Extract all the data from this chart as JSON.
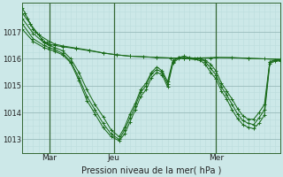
{
  "background_color": "#cce8e8",
  "plot_bg_color": "#cce8e8",
  "grid_color_major": "#99bbbb",
  "grid_color_minor": "#bbdddd",
  "line_color": "#1a6b1a",
  "vline_color": "#336633",
  "xlabel": "Pression niveau de la mer( hPa )",
  "xtick_labels": [
    "Mar",
    "Jeu",
    "Mer"
  ],
  "ytick_values": [
    1013,
    1014,
    1015,
    1016,
    1017
  ],
  "ymin": 1012.5,
  "ymax": 1018.1,
  "xmin": 0,
  "xmax": 96,
  "vline_x": [
    10,
    34,
    72
  ],
  "hline_y": [
    1013,
    1014,
    1015,
    1016,
    1017
  ],
  "series": [
    [
      [
        0,
        1017.9
      ],
      [
        1,
        1017.7
      ],
      [
        2,
        1017.5
      ],
      [
        3,
        1017.3
      ],
      [
        4,
        1017.1
      ],
      [
        5,
        1017.0
      ],
      [
        6,
        1016.9
      ],
      [
        7,
        1016.75
      ],
      [
        8,
        1016.65
      ],
      [
        9,
        1016.6
      ],
      [
        10,
        1016.55
      ],
      [
        12,
        1016.5
      ],
      [
        15,
        1016.45
      ],
      [
        20,
        1016.38
      ],
      [
        25,
        1016.3
      ],
      [
        30,
        1016.22
      ],
      [
        35,
        1016.15
      ],
      [
        40,
        1016.1
      ],
      [
        45,
        1016.08
      ],
      [
        50,
        1016.05
      ],
      [
        55,
        1016.03
      ],
      [
        60,
        1016.02
      ],
      [
        65,
        1016.02
      ],
      [
        70,
        1016.03
      ],
      [
        72,
        1016.05
      ],
      [
        78,
        1016.05
      ],
      [
        84,
        1016.02
      ],
      [
        90,
        1016.0
      ],
      [
        96,
        1015.98
      ]
    ],
    [
      [
        0,
        1017.7
      ],
      [
        3,
        1017.3
      ],
      [
        6,
        1016.9
      ],
      [
        10,
        1016.65
      ],
      [
        12,
        1016.55
      ],
      [
        15,
        1016.48
      ],
      [
        20,
        1016.4
      ],
      [
        25,
        1016.32
      ],
      [
        30,
        1016.22
      ],
      [
        35,
        1016.15
      ],
      [
        40,
        1016.1
      ],
      [
        50,
        1016.05
      ],
      [
        60,
        1016.02
      ],
      [
        72,
        1016.05
      ],
      [
        84,
        1016.02
      ],
      [
        96,
        1015.98
      ]
    ],
    [
      [
        0,
        1017.5
      ],
      [
        4,
        1016.95
      ],
      [
        8,
        1016.6
      ],
      [
        10,
        1016.5
      ],
      [
        12,
        1016.42
      ],
      [
        15,
        1016.3
      ],
      [
        18,
        1016.0
      ],
      [
        21,
        1015.5
      ],
      [
        24,
        1014.85
      ],
      [
        27,
        1014.3
      ],
      [
        30,
        1013.85
      ],
      [
        33,
        1013.35
      ],
      [
        36,
        1013.1
      ],
      [
        38,
        1013.45
      ],
      [
        40,
        1013.95
      ],
      [
        42,
        1014.35
      ],
      [
        44,
        1014.85
      ],
      [
        46,
        1015.1
      ],
      [
        48,
        1015.5
      ],
      [
        50,
        1015.7
      ],
      [
        52,
        1015.55
      ],
      [
        54,
        1015.15
      ],
      [
        56,
        1015.95
      ],
      [
        58,
        1016.05
      ],
      [
        60,
        1016.05
      ],
      [
        62,
        1016.02
      ],
      [
        64,
        1016.0
      ],
      [
        66,
        1016.0
      ],
      [
        68,
        1015.95
      ],
      [
        70,
        1015.8
      ],
      [
        72,
        1015.55
      ],
      [
        74,
        1015.1
      ],
      [
        76,
        1014.8
      ],
      [
        78,
        1014.5
      ],
      [
        80,
        1014.15
      ],
      [
        82,
        1013.88
      ],
      [
        84,
        1013.75
      ],
      [
        86,
        1013.75
      ],
      [
        88,
        1014.0
      ],
      [
        90,
        1014.3
      ],
      [
        92,
        1015.9
      ],
      [
        94,
        1015.96
      ],
      [
        96,
        1015.97
      ]
    ],
    [
      [
        0,
        1017.3
      ],
      [
        4,
        1016.75
      ],
      [
        8,
        1016.5
      ],
      [
        10,
        1016.42
      ],
      [
        12,
        1016.35
      ],
      [
        15,
        1016.2
      ],
      [
        18,
        1015.9
      ],
      [
        21,
        1015.3
      ],
      [
        24,
        1014.6
      ],
      [
        27,
        1014.1
      ],
      [
        30,
        1013.6
      ],
      [
        33,
        1013.2
      ],
      [
        36,
        1013.0
      ],
      [
        38,
        1013.35
      ],
      [
        40,
        1013.8
      ],
      [
        42,
        1014.25
      ],
      [
        44,
        1014.75
      ],
      [
        46,
        1015.0
      ],
      [
        48,
        1015.45
      ],
      [
        50,
        1015.6
      ],
      [
        52,
        1015.5
      ],
      [
        54,
        1015.05
      ],
      [
        56,
        1015.9
      ],
      [
        58,
        1016.05
      ],
      [
        60,
        1016.1
      ],
      [
        62,
        1016.05
      ],
      [
        66,
        1016.0
      ],
      [
        68,
        1015.9
      ],
      [
        70,
        1015.65
      ],
      [
        72,
        1015.4
      ],
      [
        74,
        1014.95
      ],
      [
        76,
        1014.65
      ],
      [
        78,
        1014.3
      ],
      [
        80,
        1013.95
      ],
      [
        82,
        1013.7
      ],
      [
        84,
        1013.6
      ],
      [
        86,
        1013.55
      ],
      [
        88,
        1013.8
      ],
      [
        90,
        1014.1
      ],
      [
        92,
        1015.87
      ],
      [
        94,
        1015.94
      ],
      [
        96,
        1015.95
      ]
    ],
    [
      [
        0,
        1017.1
      ],
      [
        4,
        1016.65
      ],
      [
        8,
        1016.42
      ],
      [
        10,
        1016.35
      ],
      [
        12,
        1016.28
      ],
      [
        15,
        1016.15
      ],
      [
        18,
        1015.85
      ],
      [
        21,
        1015.2
      ],
      [
        24,
        1014.45
      ],
      [
        27,
        1013.95
      ],
      [
        30,
        1013.45
      ],
      [
        33,
        1013.1
      ],
      [
        36,
        1012.95
      ],
      [
        38,
        1013.2
      ],
      [
        40,
        1013.65
      ],
      [
        42,
        1014.1
      ],
      [
        44,
        1014.6
      ],
      [
        46,
        1014.85
      ],
      [
        48,
        1015.3
      ],
      [
        50,
        1015.5
      ],
      [
        52,
        1015.4
      ],
      [
        54,
        1014.95
      ],
      [
        56,
        1015.85
      ],
      [
        58,
        1016.0
      ],
      [
        60,
        1016.05
      ],
      [
        62,
        1016.0
      ],
      [
        66,
        1015.95
      ],
      [
        68,
        1015.8
      ],
      [
        70,
        1015.5
      ],
      [
        72,
        1015.25
      ],
      [
        74,
        1014.8
      ],
      [
        76,
        1014.5
      ],
      [
        78,
        1014.1
      ],
      [
        80,
        1013.78
      ],
      [
        82,
        1013.55
      ],
      [
        84,
        1013.45
      ],
      [
        86,
        1013.4
      ],
      [
        88,
        1013.6
      ],
      [
        90,
        1013.9
      ],
      [
        92,
        1015.83
      ],
      [
        94,
        1015.91
      ],
      [
        96,
        1015.93
      ]
    ]
  ]
}
